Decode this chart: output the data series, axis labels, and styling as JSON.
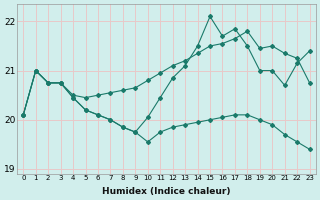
{
  "xlabel": "Humidex (Indice chaleur)",
  "background_color": "#d1eeec",
  "line_color": "#1a7a6a",
  "grid_color": "#e8c8c8",
  "xlim": [
    -0.5,
    23.5
  ],
  "ylim": [
    18.9,
    22.35
  ],
  "yticks": [
    19,
    20,
    21,
    22
  ],
  "xticks": [
    0,
    1,
    2,
    3,
    4,
    5,
    6,
    7,
    8,
    9,
    10,
    11,
    12,
    13,
    14,
    15,
    16,
    17,
    18,
    19,
    20,
    21,
    22,
    23
  ],
  "lines": [
    {
      "x": [
        0,
        1,
        2,
        3,
        4,
        5,
        6,
        7,
        8,
        9,
        10,
        11,
        12,
        13,
        14,
        15,
        16,
        17,
        18,
        19,
        20,
        21,
        22,
        23
      ],
      "y": [
        20.1,
        21.0,
        20.75,
        20.75,
        20.5,
        20.45,
        20.5,
        20.55,
        20.6,
        20.65,
        20.8,
        20.95,
        21.1,
        21.2,
        21.35,
        21.5,
        21.55,
        21.65,
        21.8,
        21.45,
        21.5,
        21.35,
        21.25,
        20.75
      ]
    },
    {
      "x": [
        0,
        1,
        2,
        3,
        4,
        5,
        6,
        7,
        8,
        9,
        10,
        11,
        12,
        13,
        14,
        15,
        16,
        17,
        18,
        19,
        20,
        21,
        22,
        23
      ],
      "y": [
        20.1,
        21.0,
        20.75,
        20.75,
        20.45,
        20.2,
        20.1,
        20.0,
        19.85,
        19.75,
        20.05,
        20.45,
        20.85,
        21.1,
        21.5,
        22.1,
        21.7,
        21.85,
        21.5,
        21.0,
        21.0,
        20.7,
        21.15,
        21.4
      ]
    },
    {
      "x": [
        0,
        1,
        2,
        3,
        4,
        5,
        6,
        7,
        8,
        9,
        10,
        11,
        12,
        13,
        14,
        15,
        16,
        17,
        18,
        19,
        20,
        21,
        22,
        23
      ],
      "y": [
        20.1,
        21.0,
        20.75,
        20.75,
        20.45,
        20.2,
        20.1,
        20.0,
        19.85,
        19.75,
        19.55,
        19.75,
        19.85,
        19.9,
        19.95,
        20.0,
        20.05,
        20.1,
        20.1,
        20.0,
        19.9,
        19.7,
        19.55,
        19.4
      ]
    }
  ]
}
